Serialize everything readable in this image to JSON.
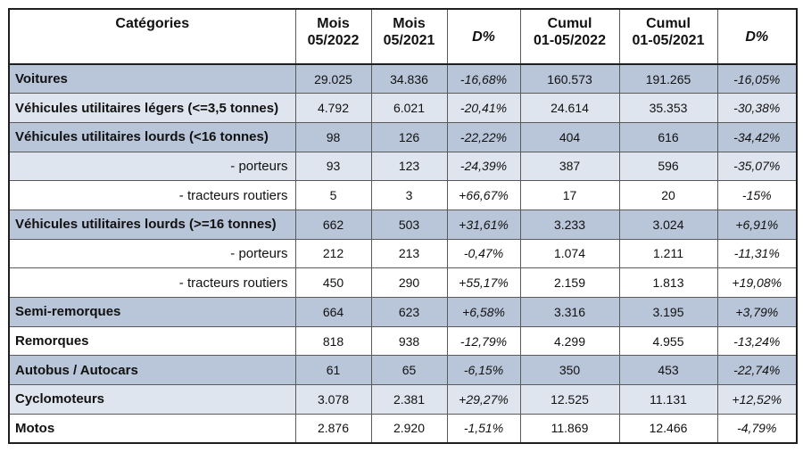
{
  "headers": [
    "Catégories",
    "Mois\n05/2022",
    "Mois\n05/2021",
    "D%",
    "Cumul\n01-05/2022",
    "Cumul\n01-05/2021",
    "D%"
  ],
  "rows": [
    {
      "label": "Voitures",
      "sub": false,
      "shade": "blue",
      "m2022": "29.025",
      "m2021": "34.836",
      "d1": "-16,68%",
      "c2022": "160.573",
      "c2021": "191.265",
      "d2": "-16,05%"
    },
    {
      "label": "Véhicules utilitaires légers (<=3,5 tonnes)",
      "sub": false,
      "shade": "light",
      "m2022": "4.792",
      "m2021": "6.021",
      "d1": "-20,41%",
      "c2022": "24.614",
      "c2021": "35.353",
      "d2": "-30,38%"
    },
    {
      "label": "Véhicules utilitaires lourds (<16 tonnes)",
      "sub": false,
      "shade": "blue",
      "m2022": "98",
      "m2021": "126",
      "d1": "-22,22%",
      "c2022": "404",
      "c2021": "616",
      "d2": "-34,42%"
    },
    {
      "label": "- porteurs",
      "sub": true,
      "shade": "light",
      "m2022": "93",
      "m2021": "123",
      "d1": "-24,39%",
      "c2022": "387",
      "c2021": "596",
      "d2": "-35,07%"
    },
    {
      "label": "- tracteurs routiers",
      "sub": true,
      "shade": "white",
      "m2022": "5",
      "m2021": "3",
      "d1": "+66,67%",
      "c2022": "17",
      "c2021": "20",
      "d2": "-15%"
    },
    {
      "label": "Véhicules utilitaires lourds (>=16 tonnes)",
      "sub": false,
      "shade": "blue",
      "m2022": "662",
      "m2021": "503",
      "d1": "+31,61%",
      "c2022": "3.233",
      "c2021": "3.024",
      "d2": "+6,91%"
    },
    {
      "label": "- porteurs",
      "sub": true,
      "shade": "white",
      "m2022": "212",
      "m2021": "213",
      "d1": "-0,47%",
      "c2022": "1.074",
      "c2021": "1.211",
      "d2": "-11,31%"
    },
    {
      "label": "- tracteurs routiers",
      "sub": true,
      "shade": "white",
      "m2022": "450",
      "m2021": "290",
      "d1": "+55,17%",
      "c2022": "2.159",
      "c2021": "1.813",
      "d2": "+19,08%"
    },
    {
      "label": "Semi-remorques",
      "sub": false,
      "shade": "blue",
      "m2022": "664",
      "m2021": "623",
      "d1": "+6,58%",
      "c2022": "3.316",
      "c2021": "3.195",
      "d2": "+3,79%"
    },
    {
      "label": "Remorques",
      "sub": false,
      "shade": "white",
      "m2022": "818",
      "m2021": "938",
      "d1": "-12,79%",
      "c2022": "4.299",
      "c2021": "4.955",
      "d2": "-13,24%"
    },
    {
      "label": "Autobus / Autocars",
      "sub": false,
      "shade": "blue",
      "m2022": "61",
      "m2021": "65",
      "d1": "-6,15%",
      "c2022": "350",
      "c2021": "453",
      "d2": "-22,74%"
    },
    {
      "label": "Cyclomoteurs",
      "sub": false,
      "shade": "light",
      "m2022": "3.078",
      "m2021": "2.381",
      "d1": "+29,27%",
      "c2022": "12.525",
      "c2021": "11.131",
      "d2": "+12,52%"
    },
    {
      "label": "Motos",
      "sub": false,
      "shade": "white",
      "m2022": "2.876",
      "m2021": "2.920",
      "d1": "-1,51%",
      "c2022": "11.869",
      "c2021": "12.466",
      "d2": "-4,79%"
    }
  ]
}
